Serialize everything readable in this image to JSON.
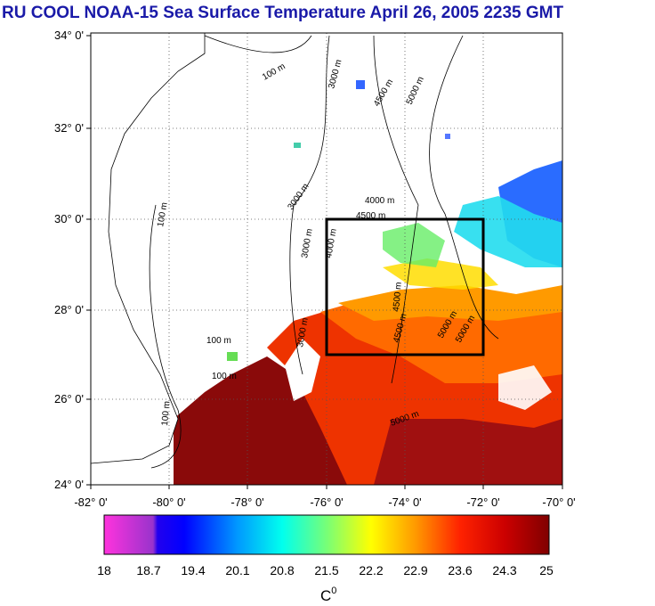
{
  "title": "RU COOL  NOAA-15 Sea Surface Temperature April 26, 2005 2235 GMT",
  "map": {
    "lat_ticks": [
      "34° 0'",
      "32° 0'",
      "30° 0'",
      "28° 0'",
      "26° 0'",
      "24° 0'"
    ],
    "lon_ticks": [
      "-82° 0'",
      "-80° 0'",
      "-78° 0'",
      "-76° 0'",
      "-74° 0'",
      "-72° 0'",
      "-70° 0'"
    ],
    "contour_labels": [
      "100 m",
      "100 m",
      "100 m",
      "100 m",
      "100 m",
      "3000 m",
      "3000 m",
      "3000 m",
      "3000 m",
      "4000 m",
      "4000 m",
      "4500 m",
      "4500 m",
      "4500 m",
      "4500 m",
      "5000 m",
      "5000 m",
      "5000 m",
      "5000 m"
    ],
    "box": {
      "lon": [
        -76,
        -72
      ],
      "lat": [
        27,
        30
      ]
    },
    "colors": {
      "land_border": "#000000",
      "box": "#000000"
    }
  },
  "colorbar": {
    "labels": [
      "18",
      "18.7",
      "19.4",
      "20.1",
      "20.8",
      "21.5",
      "22.2",
      "22.9",
      "23.6",
      "24.3",
      "25"
    ],
    "unit": "C",
    "unit_sup": "0",
    "colors": [
      "#ff33cc",
      "#0000ff",
      "#00b3ff",
      "#00ffdd",
      "#88ff55",
      "#ffff00",
      "#ff9900",
      "#ff3300",
      "#cc0000",
      "#800000"
    ]
  }
}
